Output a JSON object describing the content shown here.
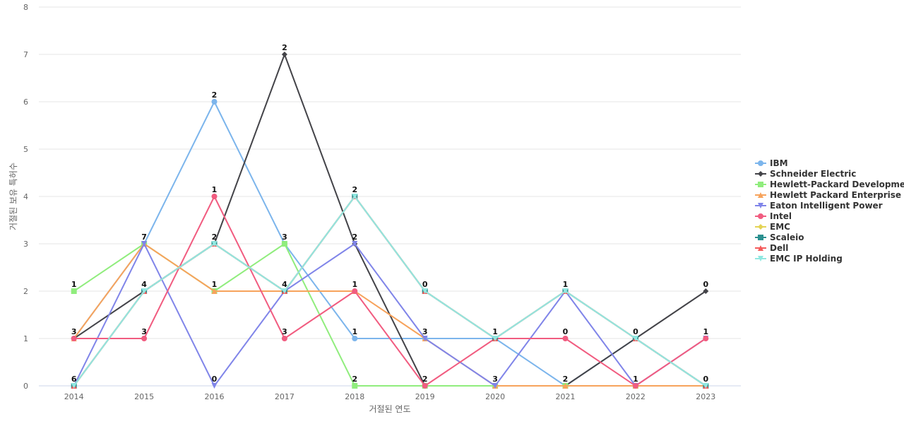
{
  "chart_data": {
    "type": "line",
    "xlabel": "거절된 연도",
    "ylabel": "거절된 보유 특허수",
    "x": [
      "2014",
      "2015",
      "2016",
      "2017",
      "2018",
      "2019",
      "2020",
      "2021",
      "2022",
      "2023"
    ],
    "ylim": [
      0,
      8
    ],
    "yticks": [
      0,
      1,
      2,
      3,
      4,
      5,
      6,
      7,
      8
    ],
    "grid": true,
    "legend_position": "right",
    "series": [
      {
        "name": "IBM",
        "color": "#7cb5ec",
        "marker": "circle",
        "values": [
          1,
          3,
          6,
          3,
          1,
          1,
          1,
          0,
          1,
          0
        ]
      },
      {
        "name": "Schneider Electric",
        "color": "#434348",
        "marker": "diamond",
        "values": [
          1,
          2,
          3,
          7,
          3,
          0,
          0,
          0,
          1,
          2
        ]
      },
      {
        "name": "Hewlett-Packard Development",
        "color": "#90ed7d",
        "marker": "square",
        "values": [
          2,
          3,
          2,
          3,
          0,
          0,
          0,
          0,
          0,
          0
        ]
      },
      {
        "name": "Hewlett Packard Enterprise ...",
        "color": "#f7a35c",
        "marker": "triangle",
        "values": [
          1,
          3,
          2,
          2,
          2,
          1,
          0,
          0,
          0,
          0
        ]
      },
      {
        "name": "Eaton Intelligent Power",
        "color": "#8085e9",
        "marker": "triangle-down",
        "values": [
          0,
          3,
          0,
          2,
          3,
          1,
          0,
          2,
          0,
          1
        ]
      },
      {
        "name": "Intel",
        "color": "#f15c80",
        "marker": "circle",
        "values": [
          1,
          1,
          4,
          1,
          2,
          0,
          1,
          1,
          0,
          1
        ]
      },
      {
        "name": "EMC",
        "color": "#e4d354",
        "marker": "diamond",
        "values": [
          0,
          2,
          3,
          2,
          4,
          2,
          1,
          2,
          1,
          0
        ]
      },
      {
        "name": "Scaleio",
        "color": "#2b908f",
        "marker": "square",
        "values": [
          0,
          2,
          3,
          2,
          4,
          2,
          1,
          2,
          1,
          0
        ]
      },
      {
        "name": "Dell",
        "color": "#f45b5b",
        "marker": "triangle",
        "values": [
          0,
          2,
          3,
          2,
          4,
          2,
          1,
          2,
          1,
          0
        ]
      },
      {
        "name": "EMC IP Holding",
        "color": "#91e8e1",
        "marker": "triangle-down",
        "values": [
          0,
          2,
          3,
          2,
          4,
          2,
          1,
          2,
          1,
          0
        ]
      }
    ],
    "data_labels": [
      "1",
      "3",
      "6",
      "7",
      "4",
      "3",
      "2",
      "1",
      "2",
      "1",
      "0",
      "2",
      "3",
      "4",
      "3",
      "2",
      "2",
      "1",
      "1",
      "2",
      "0",
      "3",
      "2",
      "1",
      "3",
      "1",
      "0",
      "2",
      "0",
      "1",
      "0",
      "1",
      "0",
      "0",
      "1",
      "0"
    ]
  }
}
